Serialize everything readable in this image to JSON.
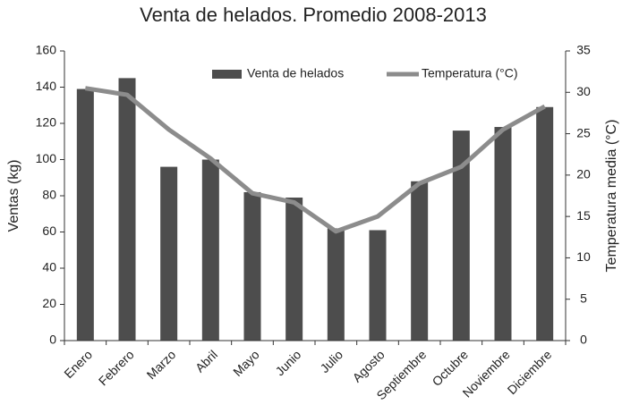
{
  "chart_data": {
    "type": "bar",
    "title": "Venta de helados. Promedio 2008-2013",
    "ylabel": "Ventas (kg)",
    "y2label": "Temperatura media (°C)",
    "categories": [
      "Enero",
      "Febrero",
      "Marzo",
      "Abril",
      "Mayo",
      "Junio",
      "Julio",
      "Agosto",
      "Septiembre",
      "Octubre",
      "Noviembre",
      "Diciembre"
    ],
    "series": [
      {
        "name": "Venta de helados",
        "type": "bar",
        "color": "#4d4d4d",
        "values": [
          139,
          145,
          96,
          100,
          82,
          79,
          62,
          61,
          88,
          116,
          118,
          129
        ]
      },
      {
        "name": "Temperatura (°C)",
        "type": "line",
        "axis": "y2",
        "color": "#8c8c8c",
        "values": [
          30.5,
          29.7,
          25.5,
          22,
          17.8,
          16.7,
          13.2,
          15,
          19,
          21,
          25.5,
          28.3
        ]
      }
    ],
    "ylim": [
      0,
      160
    ],
    "yticks": [
      0,
      20,
      40,
      60,
      80,
      100,
      120,
      140,
      160
    ],
    "y2lim": [
      0,
      35
    ],
    "y2ticks": [
      0,
      5,
      10,
      15,
      20,
      25,
      30,
      35
    ],
    "grid": false,
    "legend": "top"
  }
}
